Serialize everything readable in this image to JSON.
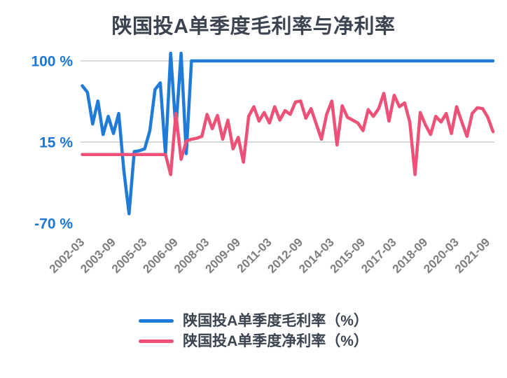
{
  "title": "陕国投A单季度毛利率与净利率",
  "colors": {
    "gross_margin_line": "#1f7ad8",
    "net_margin_line": "#ee5177",
    "title_text": "#3b4450",
    "y_tick_text": "#1b76d9",
    "x_tick_text": "#7e7e7e",
    "gridline": "#d9d9d9",
    "background": "#ffffff"
  },
  "chart_data": {
    "type": "line",
    "title": "陕国投A单季度毛利率与净利率",
    "frequency": "quarterly",
    "x_start": "2002-03",
    "x_end": "2021-12",
    "n_points": 80,
    "x_tick_every": 6,
    "x_tick_labels": [
      "2002-03",
      "2003-09",
      "2005-03",
      "2006-09",
      "2008-03",
      "2009-09",
      "2011-03",
      "2012-09",
      "2014-03",
      "2015-09",
      "2017-03",
      "2018-09",
      "2020-03",
      "2021-09"
    ],
    "y_ticks": [
      {
        "label": "100 %",
        "value": 100
      },
      {
        "label": "15 %",
        "value": 15
      },
      {
        "label": "-70 %",
        "value": -70
      }
    ],
    "grid_values": [
      100,
      15
    ],
    "ylim": [
      -75,
      109
    ],
    "grid": true,
    "legend_position": "bottom",
    "series": [
      {
        "name": "陕国投A单季度毛利率（%）",
        "color": "#1f7ad8",
        "values": [
          74,
          67,
          34,
          58,
          23,
          42,
          24,
          45,
          -15,
          -60,
          5,
          6,
          8,
          27,
          70,
          77,
          2,
          108,
          28,
          108,
          3,
          100,
          100,
          100,
          100,
          100,
          100,
          100,
          100,
          100,
          100,
          100,
          100,
          100,
          100,
          100,
          100,
          100,
          100,
          100,
          100,
          100,
          100,
          100,
          100,
          100,
          100,
          100,
          100,
          100,
          100,
          100,
          100,
          100,
          100,
          100,
          100,
          100,
          100,
          100,
          100,
          100,
          100,
          100,
          100,
          100,
          100,
          100,
          100,
          100,
          100,
          100,
          100,
          100,
          100,
          100,
          100,
          100,
          100,
          100
        ]
      },
      {
        "name": "陕国投A单季度净利率（%）",
        "color": "#ee5177",
        "values": [
          2,
          2,
          2,
          2,
          2,
          2,
          2,
          2,
          2,
          2,
          2,
          2,
          2,
          2,
          2,
          2,
          2,
          -19,
          45,
          -3,
          16,
          18,
          19,
          21,
          44,
          29,
          43,
          18,
          38,
          8,
          20,
          -6,
          42,
          52,
          37,
          46,
          35,
          52,
          38,
          48,
          44,
          57,
          58,
          40,
          50,
          34,
          18,
          44,
          58,
          12,
          53,
          41,
          38,
          35,
          27,
          49,
          42,
          50,
          66,
          37,
          64,
          52,
          56,
          36,
          -19,
          46,
          33,
          23,
          42,
          36,
          45,
          24,
          52,
          36,
          21,
          45,
          51,
          50,
          41,
          26
        ]
      }
    ]
  }
}
